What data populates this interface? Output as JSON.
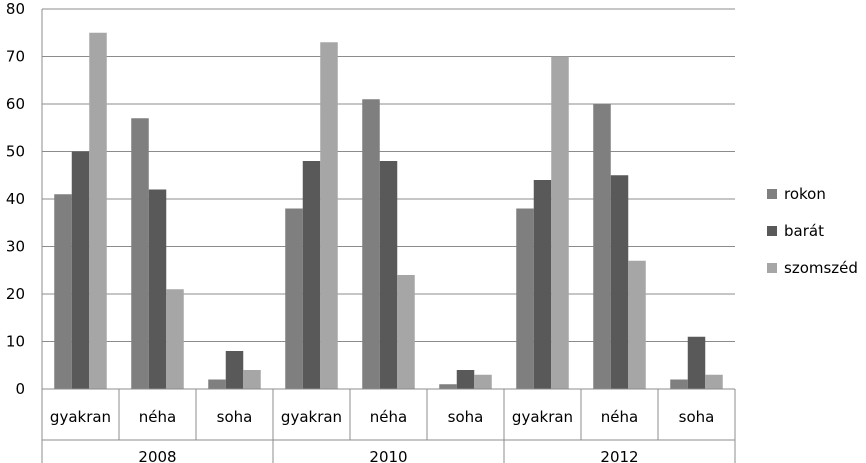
{
  "chart_data": {
    "type": "bar",
    "groups": [
      "2008",
      "2010",
      "2012"
    ],
    "subcategories": [
      "gyakran",
      "néha",
      "soha"
    ],
    "categories": [
      "gyakran",
      "néha",
      "soha",
      "gyakran",
      "néha",
      "soha",
      "gyakran",
      "néha",
      "soha"
    ],
    "series": [
      {
        "name": "rokon",
        "color": "#7f7f7f",
        "values": [
          41,
          57,
          2,
          38,
          61,
          1,
          38,
          60,
          2
        ]
      },
      {
        "name": "barát",
        "color": "#595959",
        "values": [
          50,
          42,
          8,
          48,
          48,
          4,
          44,
          45,
          11
        ]
      },
      {
        "name": "szomszéd",
        "color": "#a6a6a6",
        "values": [
          75,
          21,
          4,
          73,
          24,
          3,
          70,
          27,
          3
        ]
      }
    ],
    "y_ticks": [
      "0",
      "10",
      "20",
      "30",
      "40",
      "50",
      "60",
      "70",
      "80"
    ],
    "ylim": [
      0,
      80
    ],
    "grid": true,
    "legend_position": "right"
  }
}
